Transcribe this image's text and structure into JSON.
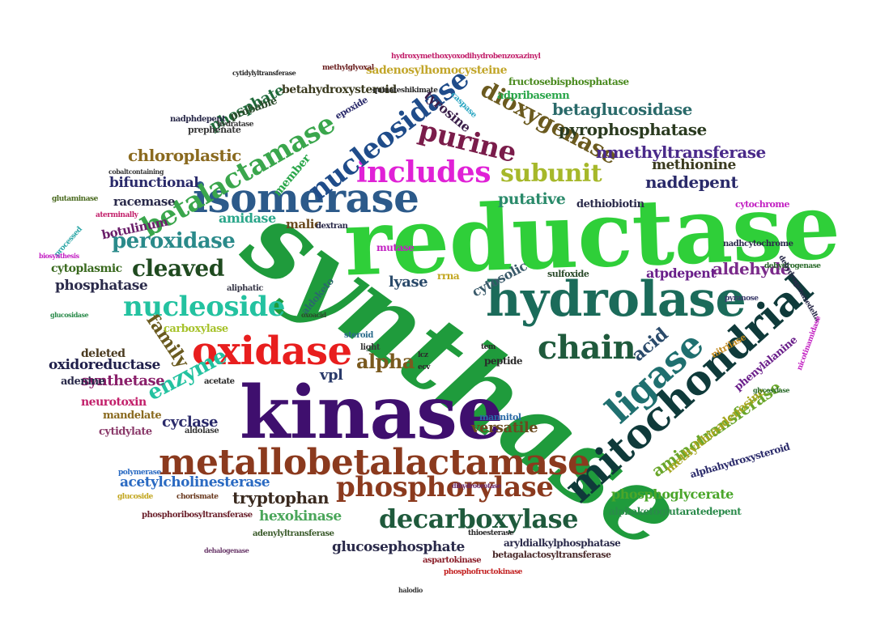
{
  "words": [
    {
      "text": "reductase",
      "color": "#2fcf39"
    },
    {
      "text": "synthase",
      "color": "#1f9b3c"
    },
    {
      "text": "kinase",
      "color": "#3f0f6e"
    },
    {
      "text": "isomerase",
      "color": "#2c5a8a"
    },
    {
      "text": "hydrolase",
      "color": "#1b6b5a"
    },
    {
      "text": "oxidase",
      "color": "#e81e1e"
    },
    {
      "text": "metallobetalactamase",
      "color": "#8b3a1e"
    },
    {
      "text": "mitochondrial",
      "color": "#0f3a3a"
    },
    {
      "text": "ligase",
      "color": "#1f6f6f"
    },
    {
      "text": "betalactamase",
      "color": "#3aa64c"
    },
    {
      "text": "includes",
      "color": "#e021d6"
    },
    {
      "text": "purine",
      "color": "#7a1c4a"
    },
    {
      "text": "subunit",
      "color": "#a6b82a"
    },
    {
      "text": "nucleosidase",
      "color": "#1f4c8a"
    },
    {
      "text": "nucleoside",
      "color": "#23c2a0"
    },
    {
      "text": "phosphorylase",
      "color": "#8b3a1e"
    },
    {
      "text": "decarboxylase",
      "color": "#1f5a3c"
    },
    {
      "text": "chain",
      "color": "#1f5a3c"
    },
    {
      "text": "peroxidase",
      "color": "#2a8a8a"
    },
    {
      "text": "cleaved",
      "color": "#1f4a1f"
    },
    {
      "text": "dioxygenase",
      "color": "#6b5a1f"
    },
    {
      "text": "enzyme",
      "color": "#23c2a0"
    },
    {
      "text": "nmethyltransferase",
      "color": "#4a2a8a"
    },
    {
      "text": "pyrophosphatase",
      "color": "#2a3a1f"
    },
    {
      "text": "betaglucosidase",
      "color": "#2a6a6a"
    },
    {
      "text": "chloroplastic",
      "color": "#8a6a1f"
    },
    {
      "text": "aminotransferase",
      "color": "#6aa62a"
    },
    {
      "text": "family",
      "color": "#6a5a1f"
    },
    {
      "text": "alpha",
      "color": "#7a5a1f"
    },
    {
      "text": "acid",
      "color": "#2a4a6a"
    },
    {
      "text": "aldehyde",
      "color": "#7a2a8a"
    },
    {
      "text": "tryptophan",
      "color": "#3a2a1f"
    },
    {
      "text": "glucosephosphate",
      "color": "#2a2a4a"
    },
    {
      "text": "phosphatase",
      "color": "#2a2a4a"
    },
    {
      "text": "synthetase",
      "color": "#8a1f6a"
    },
    {
      "text": "oxidoreductase",
      "color": "#1f1f4a"
    },
    {
      "text": "acetylcholinesterase",
      "color": "#2a6ac2"
    },
    {
      "text": "versatile",
      "color": "#6a4a1f"
    },
    {
      "text": "bifunctional",
      "color": "#2a2a6a"
    },
    {
      "text": "putative",
      "color": "#2a8a6a"
    },
    {
      "text": "naddepent",
      "color": "#2a2a6a"
    },
    {
      "text": "hexokinase",
      "color": "#4aa65a"
    },
    {
      "text": "phosphoglycerate",
      "color": "#4aa62a"
    },
    {
      "text": "cyclase",
      "color": "#2a2a6a"
    },
    {
      "text": "member",
      "color": "#2aa64a"
    },
    {
      "text": "phosphate",
      "color": "#1f6a3a"
    },
    {
      "text": "methionine",
      "color": "#3a3a1f"
    },
    {
      "text": "atpdepent",
      "color": "#6a1f8a"
    },
    {
      "text": "lyase",
      "color": "#2a4a6a"
    },
    {
      "text": "tyrosine",
      "color": "#3a1f4a"
    },
    {
      "text": "cytosolic",
      "color": "#3a5a6a"
    },
    {
      "text": "vpl",
      "color": "#2a3a6a"
    },
    {
      "text": "amidase",
      "color": "#2aa68a"
    },
    {
      "text": "malic",
      "color": "#6a4a1f"
    },
    {
      "text": "racemase",
      "color": "#2a2a4a"
    },
    {
      "text": "botulinum",
      "color": "#6a1f6a"
    },
    {
      "text": "adenine",
      "color": "#2a2a4a"
    },
    {
      "text": "deleted",
      "color": "#4a3a1f"
    },
    {
      "text": "cytoplasmic",
      "color": "#3a6a1f"
    },
    {
      "text": "carboxylase",
      "color": "#a6c22a"
    },
    {
      "text": "neurotoxin",
      "color": "#c21f6a"
    },
    {
      "text": "mandelate",
      "color": "#8a6a1f"
    },
    {
      "text": "cytidylate",
      "color": "#8a3a6a"
    },
    {
      "text": "betahydroxysteroid",
      "color": "#3a3a1f"
    },
    {
      "text": "sadenosylhomocysteine",
      "color": "#c2a62a"
    },
    {
      "text": "adpribasemn",
      "color": "#2aa64a"
    },
    {
      "text": "fructosebisphosphatase",
      "color": "#4a8a1f"
    },
    {
      "text": "dethiobiotin",
      "color": "#2a2a4a"
    },
    {
      "text": "phenylalanine",
      "color": "#6a1f8a"
    },
    {
      "text": "methylthioadenosine",
      "color": "#a6a61f"
    },
    {
      "text": "alphahydroxysteroid",
      "color": "#2a2a6a"
    },
    {
      "text": "aryldialkylphosphatase",
      "color": "#2a2a4a"
    },
    {
      "text": "betagalactosyltransferase",
      "color": "#4a2a2a"
    },
    {
      "text": "alphaketoglutaratedepent",
      "color": "#2a8a4a"
    },
    {
      "text": "mutase",
      "color": "#c21fc2"
    },
    {
      "text": "peptide",
      "color": "#2a2a2a"
    },
    {
      "text": "sulfoxide",
      "color": "#2a4a2a"
    },
    {
      "text": "aldoketo",
      "color": "#2a6a6a"
    },
    {
      "text": "rrna",
      "color": "#c2a61f"
    },
    {
      "text": "nitrilase",
      "color": "#c28a1f"
    },
    {
      "text": "prephenate",
      "color": "#3a3a3a"
    },
    {
      "text": "probable",
      "color": "#2a4a2a"
    },
    {
      "text": "nadphdepent",
      "color": "#2a2a4a"
    },
    {
      "text": "dextran",
      "color": "#2a2a4a"
    },
    {
      "text": "aliphatic",
      "color": "#3a3a4a"
    },
    {
      "text": "mannitol",
      "color": "#2a6aa6"
    },
    {
      "text": "aldolase",
      "color": "#3a3a3a"
    },
    {
      "text": "adenylyltransferase",
      "color": "#3a5a2a"
    },
    {
      "text": "phosphoribosyltransferase",
      "color": "#6a1f2a"
    },
    {
      "text": "thioesterase",
      "color": "#2a2a2a"
    },
    {
      "text": "aspartokinase",
      "color": "#8a1f2a"
    },
    {
      "text": "phosphofructokinase",
      "color": "#c21f1f"
    },
    {
      "text": "cytochrome",
      "color": "#c21fc2"
    },
    {
      "text": "nadhcytochrome",
      "color": "#2a2a4a"
    },
    {
      "text": "steroid",
      "color": "#2a6a8a"
    },
    {
      "text": "acetate",
      "color": "#2a2a2a"
    },
    {
      "text": "polymerase",
      "color": "#2a6ac2"
    },
    {
      "text": "chorismate",
      "color": "#6a3a1f"
    },
    {
      "text": "glucoside",
      "color": "#c2a61f"
    },
    {
      "text": "hydroxymethoxyoxodihydrobenzoxazinyl",
      "color": "#c21f6a"
    },
    {
      "text": "quinateshikimate",
      "color": "#2a2a2a"
    },
    {
      "text": "methylglyoxal",
      "color": "#6a1f1f"
    },
    {
      "text": "epoxide",
      "color": "#2a2a6a"
    },
    {
      "text": "caspase",
      "color": "#2aa6c2"
    },
    {
      "text": "hydratase",
      "color": "#3a3a3a"
    },
    {
      "text": "cytidylyltransferase",
      "color": "#2a2a2a"
    },
    {
      "text": "glutaminase",
      "color": "#4a6a1f"
    },
    {
      "text": "aterminally",
      "color": "#c21f6a"
    },
    {
      "text": "processed",
      "color": "#2aa6a6"
    },
    {
      "text": "biosynthesis",
      "color": "#c21fc2"
    },
    {
      "text": "cobaltcontaining",
      "color": "#3a3a3a"
    },
    {
      "text": "dehydrogenase",
      "color": "#2a6a2a"
    },
    {
      "text": "dehydrogenasedelta",
      "color": "#2a2a4a"
    },
    {
      "text": "pyranose",
      "color": "#3a3a6a"
    },
    {
      "text": "dehalogenase",
      "color": "#6a3a6a"
    },
    {
      "text": "oxoacid",
      "color": "#2a4a2a"
    },
    {
      "text": "tem",
      "color": "#2a2a2a"
    },
    {
      "text": "ecv",
      "color": "#2a2a2a"
    },
    {
      "text": "lcz",
      "color": "#2a2a2a"
    },
    {
      "text": "light",
      "color": "#3a3a3a"
    },
    {
      "text": "glucosidase",
      "color": "#2a8a4a"
    },
    {
      "text": "dihydroorotase",
      "color": "#6a2a6a"
    },
    {
      "text": "nicotinamidase",
      "color": "#c21fc2"
    },
    {
      "text": "glycosylase",
      "color": "#2a6a2a"
    },
    {
      "text": "halodio",
      "color": "#3a3a3a"
    }
  ]
}
